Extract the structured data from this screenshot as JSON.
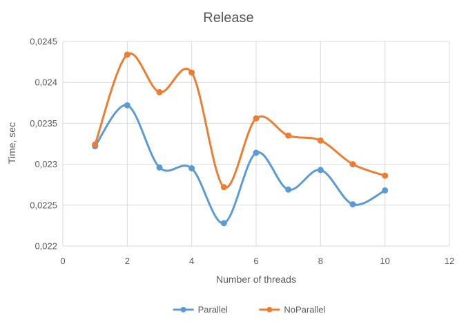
{
  "chart_data": {
    "type": "line",
    "title": "Release",
    "xlabel": "Number of threads",
    "ylabel": "Time, sec",
    "xlim": [
      0,
      12
    ],
    "ylim": [
      0.022,
      0.0245
    ],
    "x_ticks": [
      0,
      2,
      4,
      6,
      8,
      10,
      12
    ],
    "y_ticks": [
      0.022,
      0.0225,
      0.023,
      0.0235,
      0.024,
      0.0245
    ],
    "x_tick_labels": [
      "0",
      "2",
      "4",
      "6",
      "8",
      "10",
      "12"
    ],
    "y_tick_labels": [
      "0,022",
      "0,0225",
      "0,023",
      "0,0235",
      "0,024",
      "0,0245"
    ],
    "grid": true,
    "smooth": true,
    "legend_position": "bottom",
    "series": [
      {
        "name": "Parallel",
        "color": "#5B9BD5",
        "x": [
          1,
          2,
          3,
          4,
          5,
          6,
          7,
          8,
          9,
          10
        ],
        "values": [
          0.02322,
          0.02372,
          0.02296,
          0.02295,
          0.02228,
          0.02314,
          0.02269,
          0.02293,
          0.02251,
          0.02268
        ]
      },
      {
        "name": "NoParallel",
        "color": "#ED7D31",
        "x": [
          1,
          2,
          3,
          4,
          5,
          6,
          7,
          8,
          9,
          10
        ],
        "values": [
          0.02324,
          0.02434,
          0.02388,
          0.02412,
          0.02272,
          0.02356,
          0.02335,
          0.02329,
          0.023,
          0.02286
        ]
      }
    ]
  }
}
